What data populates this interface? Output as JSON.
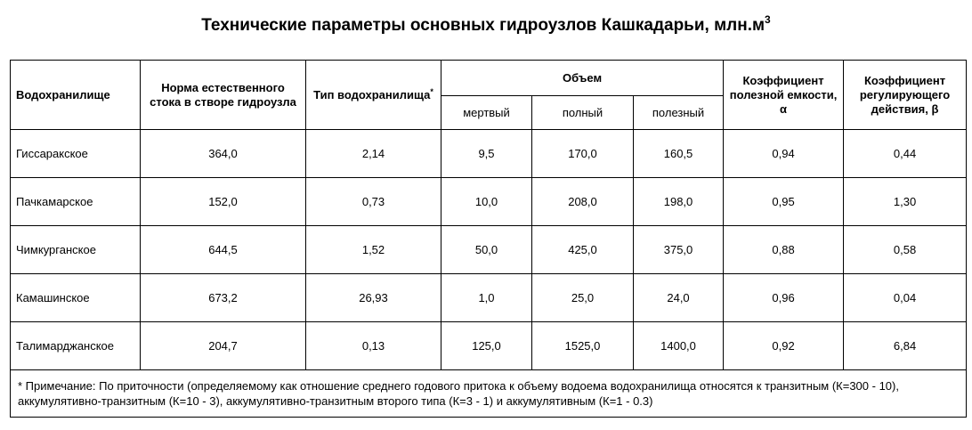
{
  "title": {
    "text": "Технические параметры основных гидроузлов Кашкадарьи, млн.м",
    "superscript": "3"
  },
  "table": {
    "headers": {
      "reservoir": "Водохранилище",
      "flow_norm": "Норма естественного стока в створе гидроузла",
      "type": "Тип водохранилища",
      "type_mark": "*",
      "volume": "Объем",
      "volume_dead": "мертвый",
      "volume_full": "полный",
      "volume_useful": "полезный",
      "coef_capacity": "Коэффициент полезной емкости, α",
      "coef_regulation": "Коэффициент регулирующего действия, β"
    },
    "rows": [
      {
        "name": "Гиссаракское",
        "flow_norm": "364,0",
        "type": "2,14",
        "dead": "9,5",
        "full": "170,0",
        "useful": "160,5",
        "alpha": "0,94",
        "beta": "0,44"
      },
      {
        "name": "Пачкамарское",
        "flow_norm": "152,0",
        "type": "0,73",
        "dead": "10,0",
        "full": "208,0",
        "useful": "198,0",
        "alpha": "0,95",
        "beta": "1,30"
      },
      {
        "name": "Чимкурганское",
        "flow_norm": "644,5",
        "type": "1,52",
        "dead": "50,0",
        "full": "425,0",
        "useful": "375,0",
        "alpha": "0,88",
        "beta": "0,58"
      },
      {
        "name": "Камашинское",
        "flow_norm": "673,2",
        "type": "26,93",
        "dead": "1,0",
        "full": "25,0",
        "useful": "24,0",
        "alpha": "0,96",
        "beta": "0,04"
      },
      {
        "name": "Талимарджанское",
        "flow_norm": "204,7",
        "type": "0,13",
        "dead": "125,0",
        "full": "1525,0",
        "useful": "1400,0",
        "alpha": "0,92",
        "beta": "6,84"
      }
    ],
    "note": "* Примечание: По приточности (определяемому как отношение среднего годового притока к объему водоема водохранилища относятся к транзитным (К=300 - 10), аккумулятивно-транзитным (К=10 - 3), аккумулятивно-транзитным второго типа (К=3 - 1) и аккумулятивным (К=1 - 0.3)"
  }
}
